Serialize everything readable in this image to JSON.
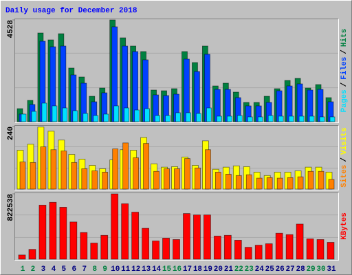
{
  "chart_data": [
    {
      "type": "bar",
      "title": "Daily usage for December 2018",
      "ylim": [
        0,
        4528
      ],
      "yticks": [
        4528
      ],
      "legend_separator": "/",
      "series": [
        {
          "name": "Hits",
          "color": "#008040",
          "values": [
            581,
            949,
            3947,
            3641,
            3916,
            2387,
            1989,
            1132,
            1499,
            4528,
            3733,
            3366,
            3121,
            1408,
            1377,
            1469,
            3121,
            2632,
            3366,
            1591,
            1714,
            1316,
            857,
            857,
            1132,
            1469,
            1836,
            1928,
            1499,
            1652,
            1071
          ]
        },
        {
          "name": "Files",
          "color": "#0040ff",
          "values": [
            337,
            765,
            3580,
            3335,
            3366,
            2081,
            1714,
            887,
            1285,
            4223,
            3366,
            3121,
            2754,
            1193,
            1163,
            1224,
            2785,
            2234,
            2999,
            1438,
            1438,
            1071,
            704,
            704,
            857,
            1377,
            1591,
            1683,
            1408,
            1438,
            887
          ]
        },
        {
          "name": "Pages",
          "color": "#00e0ff",
          "values": [
            337,
            459,
            826,
            704,
            612,
            490,
            367,
            275,
            337,
            704,
            612,
            520,
            581,
            275,
            275,
            398,
            398,
            367,
            612,
            245,
            245,
            275,
            214,
            214,
            275,
            245,
            245,
            245,
            245,
            214,
            214
          ]
        }
      ]
    },
    {
      "type": "bar",
      "ylim": [
        0,
        240
      ],
      "yticks": [
        240
      ],
      "legend_separator": "/",
      "series": [
        {
          "name": "Visits",
          "color": "#ffff00",
          "values": [
            149,
            172,
            238,
            222,
            188,
            133,
            115,
            91,
            78,
            112,
            151,
            149,
            198,
            97,
            84,
            86,
            123,
            91,
            185,
            76,
            84,
            89,
            86,
            65,
            52,
            65,
            65,
            70,
            84,
            84,
            65
          ]
        },
        {
          "name": "Sites",
          "color": "#ff8000",
          "values": [
            104,
            102,
            162,
            151,
            146,
            102,
            78,
            70,
            65,
            154,
            177,
            120,
            175,
            68,
            78,
            78,
            117,
            81,
            151,
            65,
            57,
            52,
            55,
            42,
            44,
            42,
            44,
            47,
            68,
            68,
            37
          ]
        }
      ]
    },
    {
      "type": "bar",
      "ylim": [
        0,
        822538
      ],
      "yticks": [
        822538
      ],
      "series": [
        {
          "name": "KBytes",
          "color": "#ff0000",
          "values": [
            53070,
            123830,
            681065,
            716445,
            654530,
            468785,
            336110,
            203435,
            300730,
            822538,
            698755,
            592615,
            389180,
            229970,
            265350,
            247660,
            574925,
            557235,
            557235,
            291885,
            300730,
            238815,
            150365,
            176900,
            194590,
            327265,
            309575,
            442250,
            256505,
            247660,
            212280
          ]
        }
      ],
      "categories": [
        "1",
        "2",
        "3",
        "4",
        "5",
        "6",
        "7",
        "8",
        "9",
        "10",
        "11",
        "12",
        "13",
        "14",
        "15",
        "16",
        "17",
        "18",
        "19",
        "20",
        "21",
        "22",
        "23",
        "24",
        "25",
        "26",
        "27",
        "28",
        "29",
        "30",
        "31"
      ],
      "label_colors": [
        "#008040",
        "#008040",
        "#00007f",
        "#00007f",
        "#00007f",
        "#00007f",
        "#00007f",
        "#008040",
        "#008040",
        "#00007f",
        "#00007f",
        "#00007f",
        "#00007f",
        "#00007f",
        "#008040",
        "#008040",
        "#00007f",
        "#00007f",
        "#00007f",
        "#00007f",
        "#00007f",
        "#008040",
        "#008040",
        "#00007f",
        "#00007f",
        "#00007f",
        "#00007f",
        "#00007f",
        "#008040",
        "#008040",
        "#00007f"
      ]
    }
  ]
}
